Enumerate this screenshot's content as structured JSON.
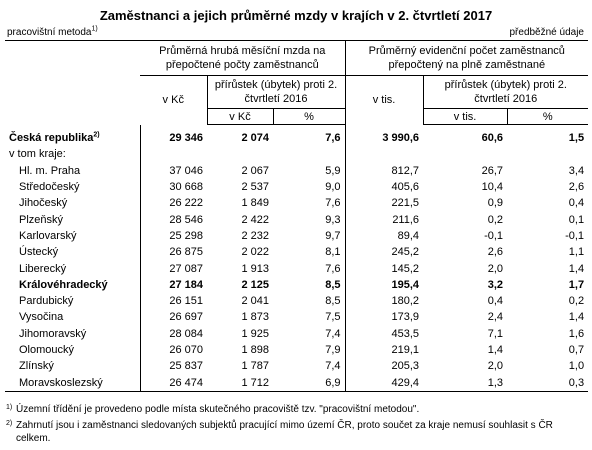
{
  "title": "Zaměstnanci a jejich průměrné mzdy v krajích v 2. čtvrtletí 2017",
  "left_note": "pracovištní metoda",
  "left_note_mark": "1)",
  "right_note": "předběžné údaje",
  "header": {
    "group1": "Průměrná hrubá měsíční mzda na přepočtené počty zaměstnanců",
    "group2": "Průměrný evidenční počet zaměstnanců přepočtený na plně zaměstnané",
    "vkc": "v Kč",
    "change_label": "přírůstek (úbytek) proti 2. čtvrtletí 2016",
    "sub_vkc": "v Kč",
    "pct": "%",
    "vtis": "v tis.",
    "change_label2": "přírůstek (úbytek) proti 2. čtvrtletí 2016",
    "sub_vtis": "v tis.",
    "pct2": "%"
  },
  "total": {
    "name": "Česká republika",
    "mark": "2)",
    "wage": "29 346",
    "wage_chg": "2 074",
    "wage_pct": "7,6",
    "emp": "3 990,6",
    "emp_chg": "60,6",
    "emp_pct": "1,5"
  },
  "sub_heading": "v tom kraje:",
  "rows": [
    {
      "name": "Hl. m. Praha",
      "wage": "37 046",
      "wage_chg": "2 067",
      "wage_pct": "5,9",
      "emp": "812,7",
      "emp_chg": "26,7",
      "emp_pct": "3,4"
    },
    {
      "name": "Středočeský",
      "wage": "30 668",
      "wage_chg": "2 537",
      "wage_pct": "9,0",
      "emp": "405,6",
      "emp_chg": "10,4",
      "emp_pct": "2,6"
    },
    {
      "name": "Jihočeský",
      "wage": "26 222",
      "wage_chg": "1 849",
      "wage_pct": "7,6",
      "emp": "221,5",
      "emp_chg": "0,9",
      "emp_pct": "0,4"
    },
    {
      "name": "Plzeňský",
      "wage": "28 546",
      "wage_chg": "2 422",
      "wage_pct": "9,3",
      "emp": "211,6",
      "emp_chg": "0,2",
      "emp_pct": "0,1"
    },
    {
      "name": "Karlovarský",
      "wage": "25 298",
      "wage_chg": "2 232",
      "wage_pct": "9,7",
      "emp": "89,4",
      "emp_chg": "-0,1",
      "emp_pct": "-0,1"
    },
    {
      "name": "Ústecký",
      "wage": "26 875",
      "wage_chg": "2 022",
      "wage_pct": "8,1",
      "emp": "245,2",
      "emp_chg": "2,6",
      "emp_pct": "1,1"
    },
    {
      "name": "Liberecký",
      "wage": "27 087",
      "wage_chg": "1 913",
      "wage_pct": "7,6",
      "emp": "145,2",
      "emp_chg": "2,0",
      "emp_pct": "1,4"
    },
    {
      "name": "Královéhradecký",
      "wage": "27 184",
      "wage_chg": "2 125",
      "wage_pct": "8,5",
      "emp": "195,4",
      "emp_chg": "3,2",
      "emp_pct": "1,7"
    },
    {
      "name": "Pardubický",
      "wage": "26 151",
      "wage_chg": "2 041",
      "wage_pct": "8,5",
      "emp": "180,2",
      "emp_chg": "0,4",
      "emp_pct": "0,2"
    },
    {
      "name": "Vysočina",
      "wage": "26 697",
      "wage_chg": "1 873",
      "wage_pct": "7,5",
      "emp": "173,9",
      "emp_chg": "2,4",
      "emp_pct": "1,4"
    },
    {
      "name": "Jihomoravský",
      "wage": "28 084",
      "wage_chg": "1 925",
      "wage_pct": "7,4",
      "emp": "453,5",
      "emp_chg": "7,1",
      "emp_pct": "1,6"
    },
    {
      "name": "Olomoucký",
      "wage": "26 070",
      "wage_chg": "1 898",
      "wage_pct": "7,9",
      "emp": "219,1",
      "emp_chg": "1,4",
      "emp_pct": "0,7"
    },
    {
      "name": "Zlínský",
      "wage": "25 837",
      "wage_chg": "1 787",
      "wage_pct": "7,4",
      "emp": "205,3",
      "emp_chg": "2,0",
      "emp_pct": "1,0"
    },
    {
      "name": "Moravskoslezský",
      "wage": "26 474",
      "wage_chg": "1 712",
      "wage_pct": "6,9",
      "emp": "429,4",
      "emp_chg": "1,3",
      "emp_pct": "0,3"
    }
  ],
  "bold_row": "Královéhradecký",
  "footnotes": [
    {
      "mark": "1)",
      "text": "Územní třídění je provedeno podle místa skutečného pracoviště tzv. \"pracovištní metodou\"."
    },
    {
      "mark": "2)",
      "text": "Zahrnutí jsou i zaměstnanci sledovaných subjektů pracující mimo území ČR, proto součet za kraje nemusí souhlasit s ČR celkem."
    }
  ]
}
